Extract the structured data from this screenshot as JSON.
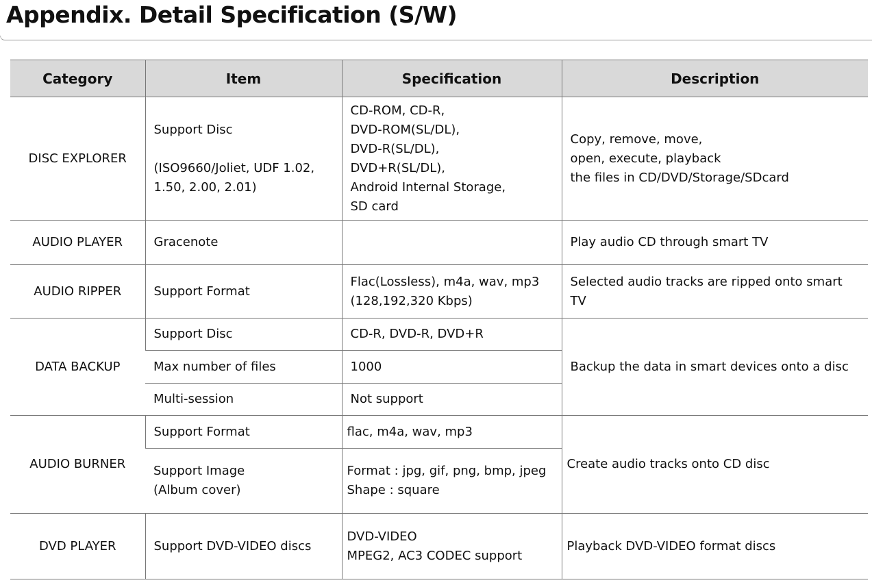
{
  "title": "Appendix. Detail Specification (S/W)",
  "headers": [
    "Category",
    "Item",
    "Specification",
    "Description"
  ],
  "rows": {
    "disc_explorer": {
      "category": "DISC EXPLORER",
      "item": "Support Disc\n\n(ISO9660/Joliet, UDF 1.02, 1.50, 2.00, 2.01)",
      "spec": "CD-ROM, CD-R,\nDVD-ROM(SL/DL),\nDVD-R(SL/DL),\nDVD+R(SL/DL),\nAndroid Internal Storage,\nSD card",
      "desc": "Copy, remove, move,\nopen, execute, playback\nthe files in CD/DVD/Storage/SDcard"
    },
    "audio_player": {
      "category": "AUDIO PLAYER",
      "item": "Gracenote",
      "spec": "",
      "desc": "Play audio CD through smart TV"
    },
    "audio_ripper": {
      "category": "AUDIO RIPPER",
      "item": "Support Format",
      "spec": "Flac(Lossless), m4a, wav, mp3\n(128,192,320 Kbps)",
      "desc": "Selected audio tracks are ripped onto smart TV"
    },
    "data_backup": {
      "category": "DATA BACKUP",
      "items": [
        "Support Disc",
        "Max number of files",
        "Multi-session"
      ],
      "specs": [
        "CD-R, DVD-R, DVD+R",
        "1000",
        "Not support"
      ],
      "desc": "Backup the data in smart devices onto a disc"
    },
    "audio_burner": {
      "category": "AUDIO BURNER",
      "items": [
        "Support Format",
        "Support Image\n(Album cover)"
      ],
      "specs": [
        "flac, m4a, wav, mp3",
        "Format : jpg, gif, png, bmp, jpeg\nShape : square"
      ],
      "desc": "Create audio tracks onto CD disc"
    },
    "dvd_player": {
      "category": "DVD PLAYER",
      "item": "Support DVD-VIDEO discs",
      "spec": "DVD-VIDEO\nMPEG2, AC3 CODEC support",
      "desc": "Playback DVD-VIDEO format discs"
    }
  }
}
